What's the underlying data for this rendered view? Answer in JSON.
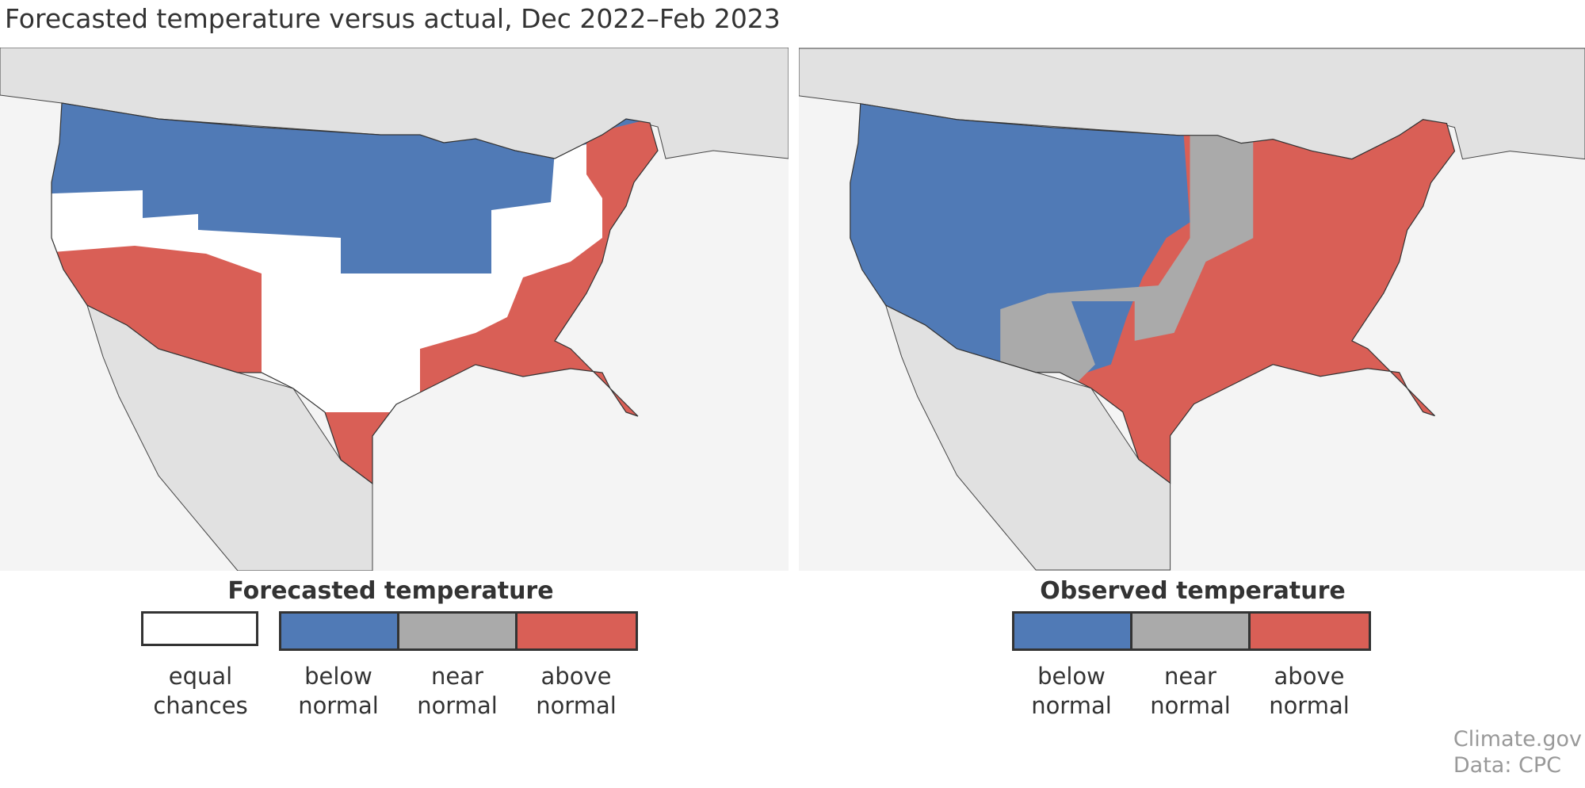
{
  "title": "Forecasted temperature versus actual, Dec 2022–Feb 2023",
  "colors": {
    "below_normal": "#507ab6",
    "near_normal": "#aaaaaa",
    "above_normal": "#d95f56",
    "equal_chances": "#ffffff",
    "land_outside": "#e1e1e1",
    "ocean": "#f4f4f4"
  },
  "left_map": {
    "legend_title": "Forecasted temperature",
    "categories": [
      {
        "line1": "equal",
        "line2": "chances",
        "color": "#ffffff"
      },
      {
        "line1": "below",
        "line2": "normal",
        "color": "#507ab6"
      },
      {
        "line1": "near",
        "line2": "normal",
        "color": "#aaaaaa"
      },
      {
        "line1": "above",
        "line2": "normal",
        "color": "#d95f56"
      }
    ]
  },
  "right_map": {
    "legend_title": "Observed temperature",
    "categories": [
      {
        "line1": "below",
        "line2": "normal",
        "color": "#507ab6"
      },
      {
        "line1": "near",
        "line2": "normal",
        "color": "#aaaaaa"
      },
      {
        "line1": "above",
        "line2": "normal",
        "color": "#d95f56"
      }
    ]
  },
  "credit": {
    "line1": "Climate.gov",
    "line2": "Data: CPC"
  }
}
